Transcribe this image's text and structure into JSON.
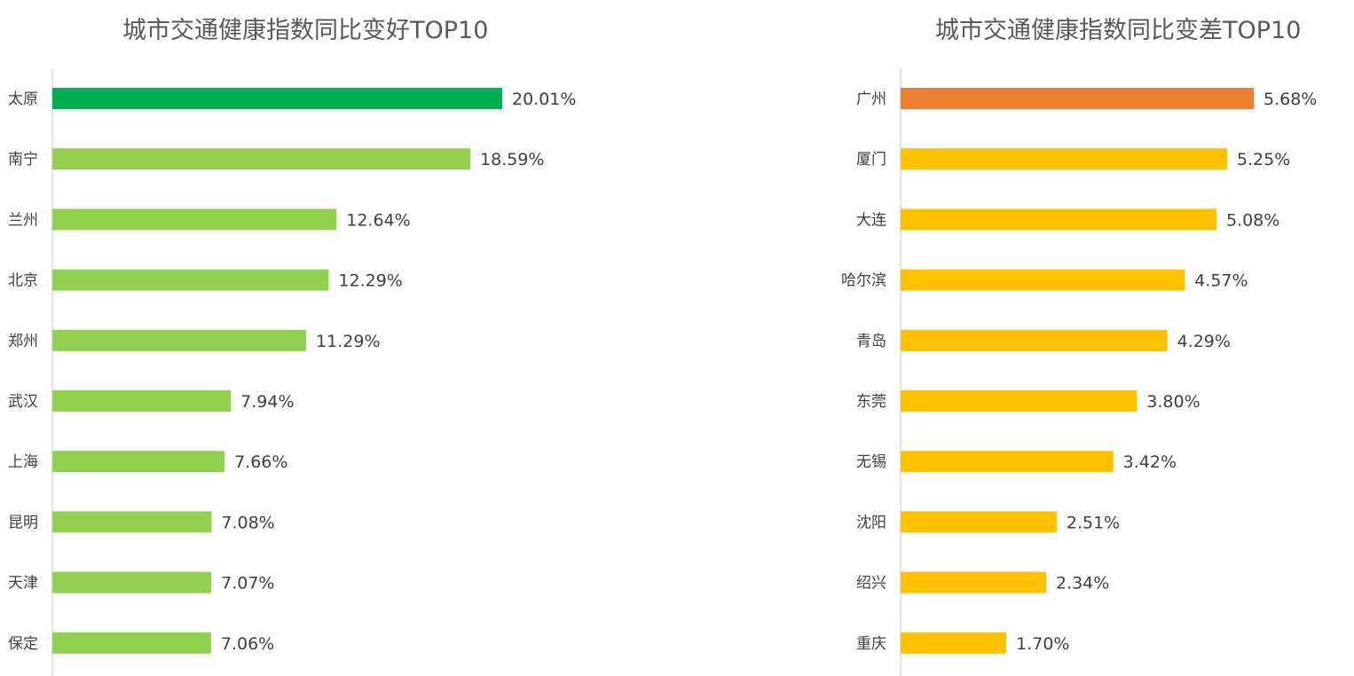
{
  "chart_data": [
    {
      "type": "bar",
      "orientation": "horizontal",
      "title": "城市交通健康指数同比变好TOP10",
      "categories": [
        "太原",
        "南宁",
        "兰州",
        "北京",
        "郑州",
        "武汉",
        "上海",
        "昆明",
        "天津",
        "保定"
      ],
      "values": [
        20.01,
        18.59,
        12.64,
        12.29,
        11.29,
        7.94,
        7.66,
        7.08,
        7.07,
        7.06
      ],
      "value_labels": [
        "20.01%",
        "18.59%",
        "12.64%",
        "12.29%",
        "11.29%",
        "7.94%",
        "7.66%",
        "7.08%",
        "7.07%",
        "7.06%"
      ],
      "unit": "%",
      "xlim": [
        0,
        20.01
      ],
      "grid": false,
      "legend": "none",
      "colors": {
        "highlight": "#00B050",
        "bar": "#92D050",
        "axis": "#D9D9D9"
      }
    },
    {
      "type": "bar",
      "orientation": "horizontal",
      "title": "城市交通健康指数同比变差TOP10",
      "categories": [
        "广州",
        "厦门",
        "大连",
        "哈尔滨",
        "青岛",
        "东莞",
        "无锡",
        "沈阳",
        "绍兴",
        "重庆"
      ],
      "values": [
        5.68,
        5.25,
        5.08,
        4.57,
        4.29,
        3.8,
        3.42,
        2.51,
        2.34,
        1.7
      ],
      "value_labels": [
        "5.68%",
        "5.25%",
        "5.08%",
        "4.57%",
        "4.29%",
        "3.80%",
        "3.42%",
        "2.51%",
        "2.34%",
        "1.70%"
      ],
      "unit": "%",
      "xlim": [
        0,
        5.68
      ],
      "grid": false,
      "legend": "none",
      "colors": {
        "highlight": "#ED7D31",
        "bar": "#FFC000",
        "axis": "#D9D9D9"
      }
    }
  ]
}
